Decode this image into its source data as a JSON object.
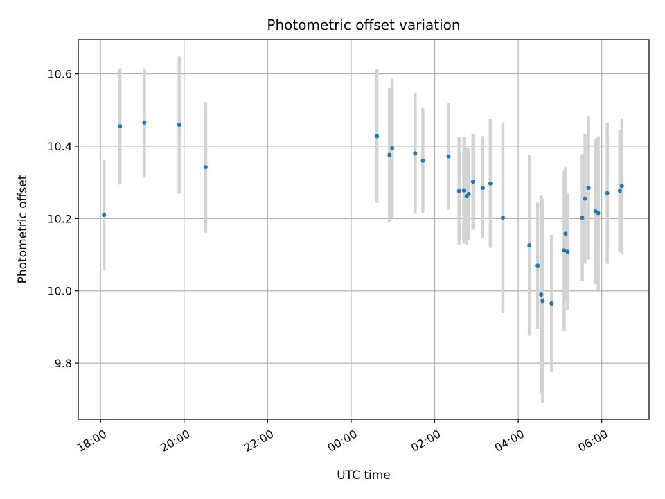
{
  "chart_data": {
    "type": "scatter",
    "title": "Photometric offset variation",
    "xlabel": "UTC time",
    "ylabel": "Photometric offset",
    "x_axis_kind": "time",
    "xlim": [
      "17:28",
      "07:08"
    ],
    "ylim": [
      9.645,
      10.695
    ],
    "x_ticks": [
      "18:00",
      "20:00",
      "22:00",
      "00:00",
      "02:00",
      "04:00",
      "06:00"
    ],
    "y_ticks": [
      9.8,
      10.0,
      10.2,
      10.4,
      10.6
    ],
    "grid": true,
    "legend": "none",
    "colors": {
      "point": "#1f77b4",
      "error_bar": "#d3d3d3",
      "grid": "#b0b0b0",
      "axes": "#000000"
    },
    "points": [
      {
        "t": "18:05",
        "y": 10.21,
        "lo": 10.058,
        "hi": 10.362
      },
      {
        "t": "18:28",
        "y": 10.455,
        "lo": 10.294,
        "hi": 10.615
      },
      {
        "t": "19:03",
        "y": 10.465,
        "lo": 10.313,
        "hi": 10.615
      },
      {
        "t": "19:53",
        "y": 10.459,
        "lo": 10.27,
        "hi": 10.648
      },
      {
        "t": "20:31",
        "y": 10.342,
        "lo": 10.161,
        "hi": 10.522
      },
      {
        "t": "00:37",
        "y": 10.428,
        "lo": 10.243,
        "hi": 10.613
      },
      {
        "t": "00:55",
        "y": 10.376,
        "lo": 10.191,
        "hi": 10.561
      },
      {
        "t": "00:59",
        "y": 10.395,
        "lo": 10.201,
        "hi": 10.589
      },
      {
        "t": "01:32",
        "y": 10.38,
        "lo": 10.213,
        "hi": 10.547
      },
      {
        "t": "01:43",
        "y": 10.36,
        "lo": 10.215,
        "hi": 10.505
      },
      {
        "t": "02:20",
        "y": 10.372,
        "lo": 10.224,
        "hi": 10.52
      },
      {
        "t": "02:35",
        "y": 10.276,
        "lo": 10.127,
        "hi": 10.425
      },
      {
        "t": "02:42",
        "y": 10.278,
        "lo": 10.131,
        "hi": 10.425
      },
      {
        "t": "02:46",
        "y": 10.262,
        "lo": 10.127,
        "hi": 10.397
      },
      {
        "t": "02:49",
        "y": 10.268,
        "lo": 10.141,
        "hi": 10.394
      },
      {
        "t": "02:55",
        "y": 10.302,
        "lo": 10.169,
        "hi": 10.434
      },
      {
        "t": "03:09",
        "y": 10.285,
        "lo": 10.145,
        "hi": 10.428
      },
      {
        "t": "03:20",
        "y": 10.297,
        "lo": 10.119,
        "hi": 10.475
      },
      {
        "t": "03:38",
        "y": 10.202,
        "lo": 9.938,
        "hi": 10.466
      },
      {
        "t": "04:16",
        "y": 10.126,
        "lo": 9.876,
        "hi": 10.375
      },
      {
        "t": "04:28",
        "y": 10.07,
        "lo": 9.895,
        "hi": 10.244
      },
      {
        "t": "04:33",
        "y": 9.99,
        "lo": 9.717,
        "hi": 10.263
      },
      {
        "t": "04:35",
        "y": 9.972,
        "lo": 9.69,
        "hi": 10.254
      },
      {
        "t": "04:48",
        "y": 9.965,
        "lo": 9.775,
        "hi": 10.155
      },
      {
        "t": "05:06",
        "y": 10.112,
        "lo": 9.889,
        "hi": 10.332
      },
      {
        "t": "05:08",
        "y": 10.158,
        "lo": 9.975,
        "hi": 10.343
      },
      {
        "t": "05:11",
        "y": 10.108,
        "lo": 9.946,
        "hi": 10.27
      },
      {
        "t": "05:32",
        "y": 10.202,
        "lo": 10.027,
        "hi": 10.378
      },
      {
        "t": "05:36",
        "y": 10.255,
        "lo": 10.075,
        "hi": 10.434
      },
      {
        "t": "05:41",
        "y": 10.285,
        "lo": 10.087,
        "hi": 10.482
      },
      {
        "t": "05:51",
        "y": 10.22,
        "lo": 10.018,
        "hi": 10.421
      },
      {
        "t": "05:55",
        "y": 10.215,
        "lo": 10.002,
        "hi": 10.427
      },
      {
        "t": "06:08",
        "y": 10.27,
        "lo": 10.075,
        "hi": 10.465
      },
      {
        "t": "06:26",
        "y": 10.277,
        "lo": 10.107,
        "hi": 10.445
      },
      {
        "t": "06:29",
        "y": 10.29,
        "lo": 10.103,
        "hi": 10.477
      }
    ]
  }
}
